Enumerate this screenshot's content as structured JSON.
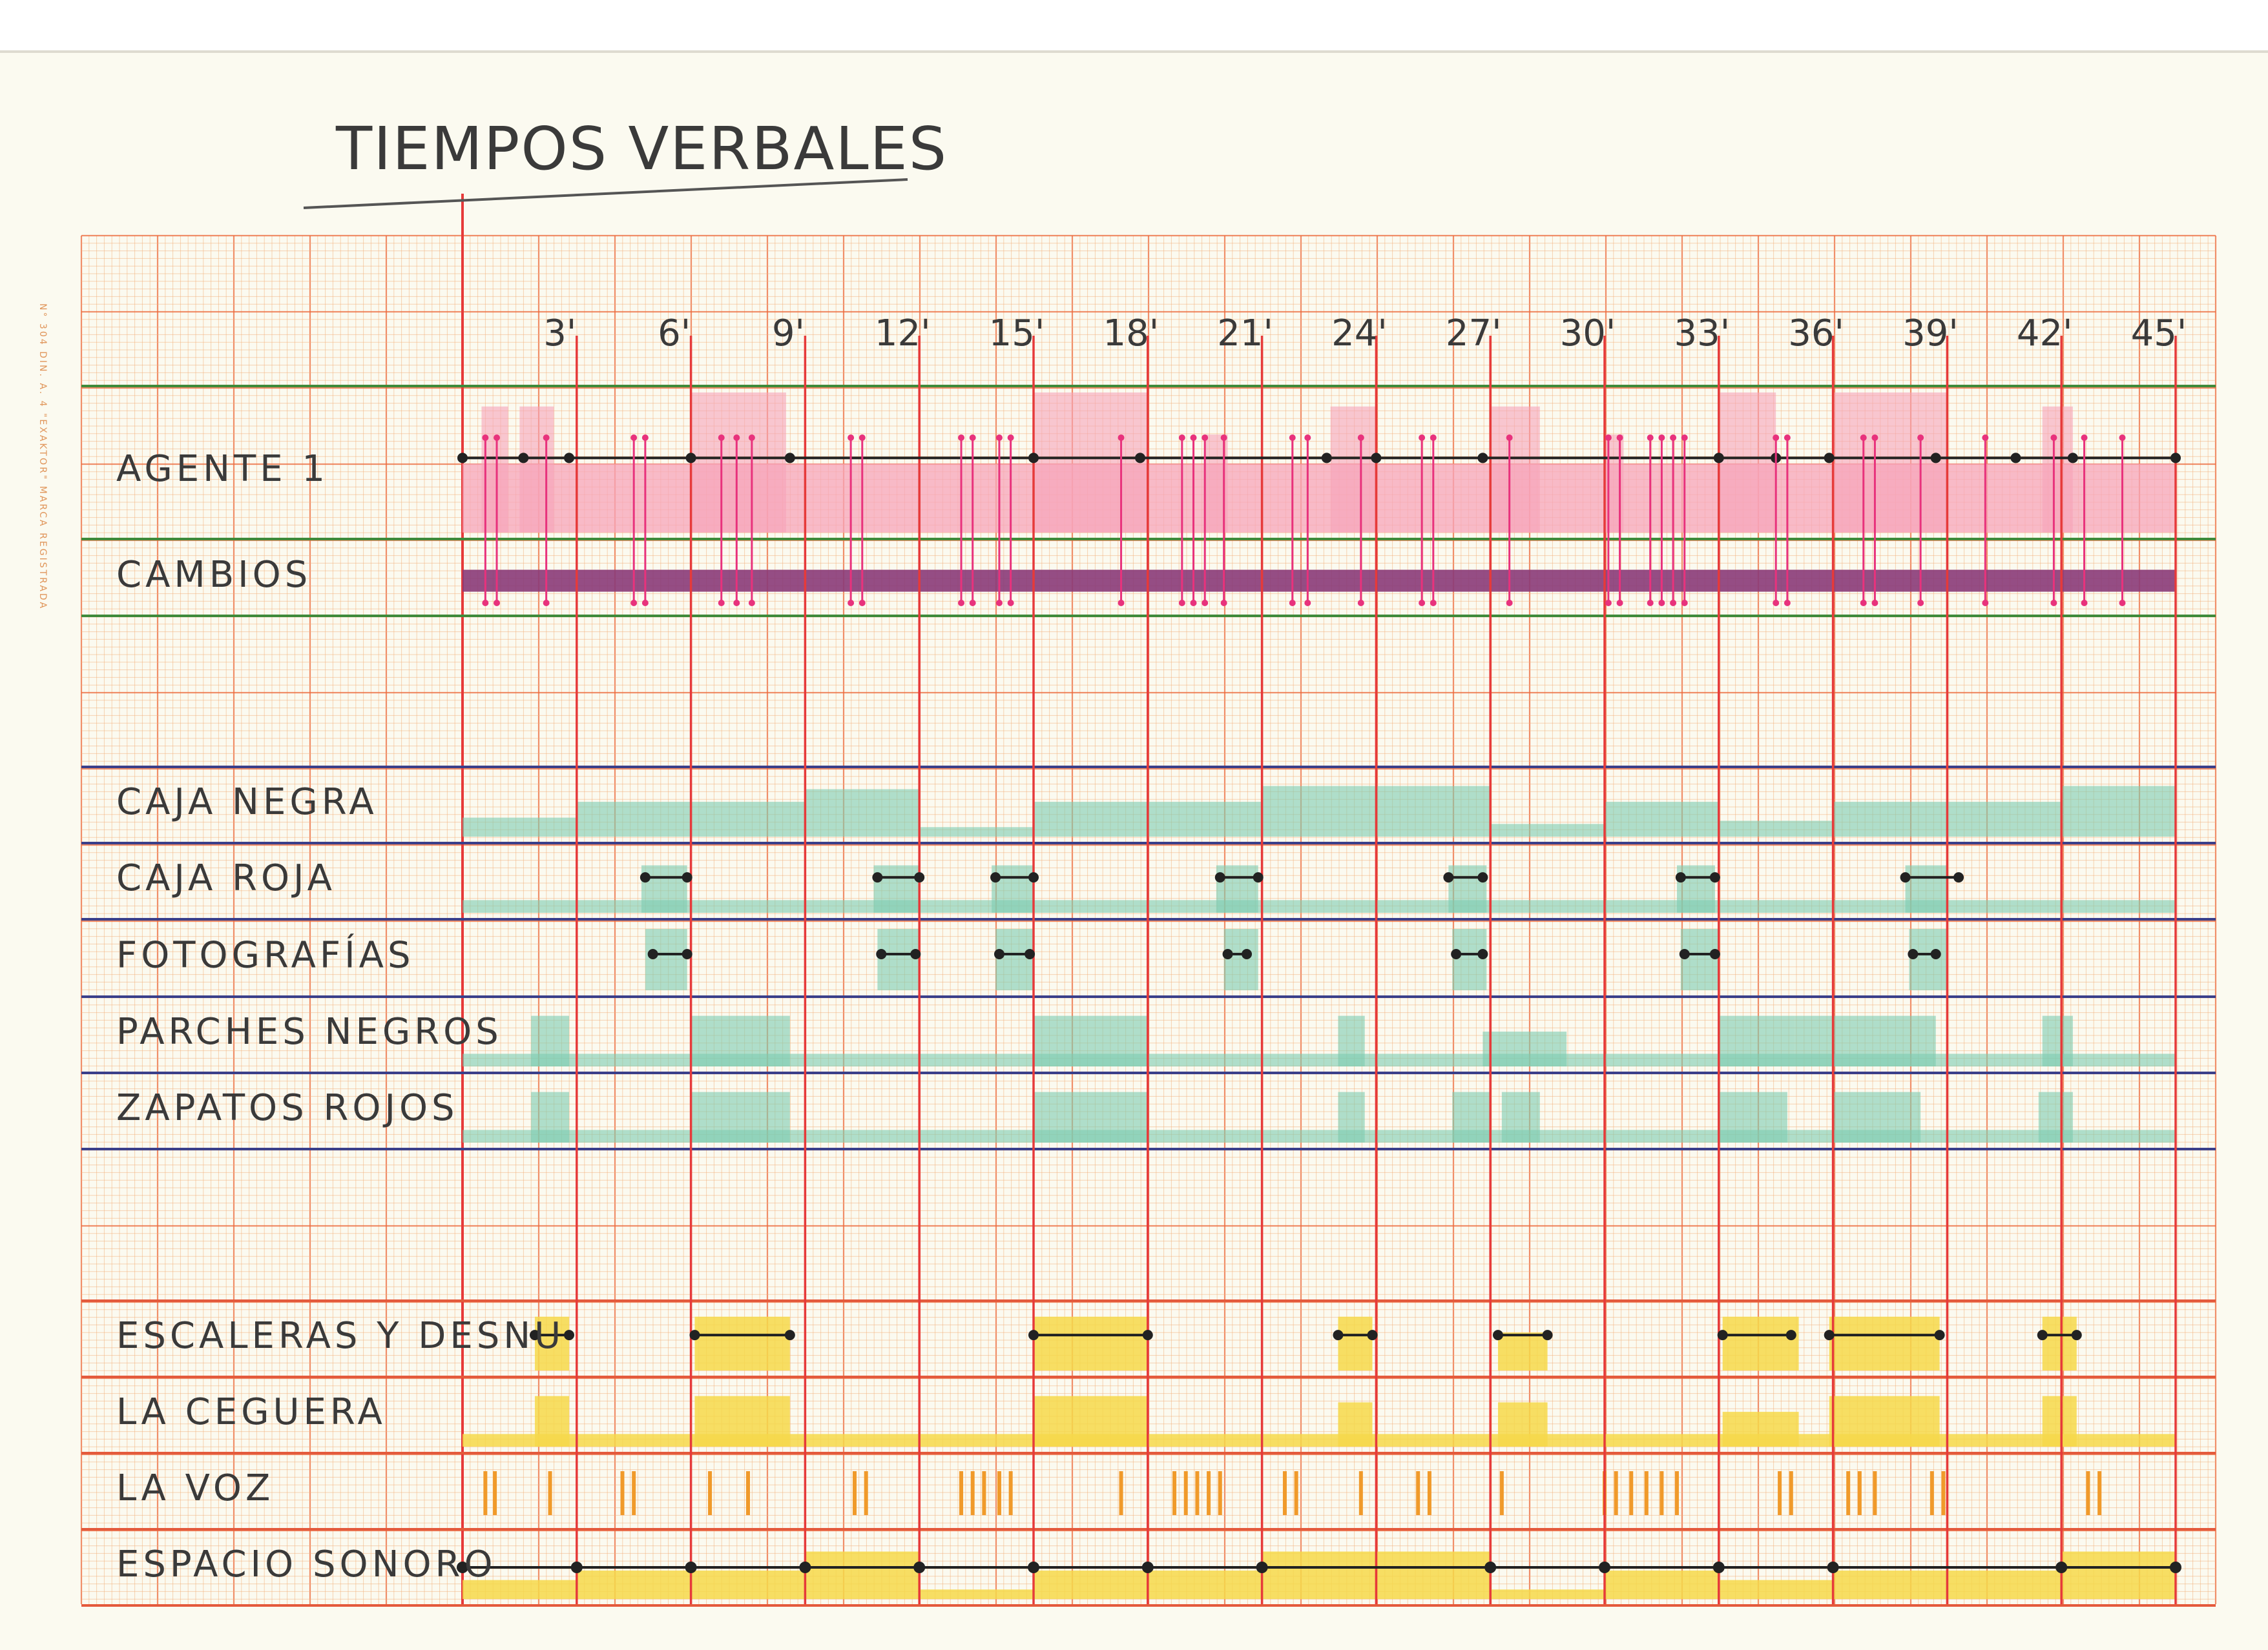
{
  "title": "TIEMPOS VERBALES",
  "paper_imprint": "N° 304 DIN. A. 4 \"EXAKTOR\" MARCA REGISTRADA",
  "colors": {
    "paper": "#fbfaf0",
    "grid_fine": "#f3b17c",
    "grid_major": "#ec6a3c",
    "minute_line": "#e63a3a",
    "band_green": "#3f8a3a",
    "band_blue": "#3a3f8a",
    "band_red": "#e45a3c",
    "pink": "#f7a4b9",
    "magenta": "#e8327c",
    "purple": "#8a3a78",
    "teal": "#7dcbb0",
    "yellow": "#f6d84a",
    "orange": "#f09a2a",
    "ink": "#222222"
  },
  "timeline": {
    "start": 0,
    "end": 45,
    "tick_labels": [
      "3'",
      "6'",
      "9'",
      "12'",
      "15'",
      "18'",
      "21'",
      "24'",
      "27'",
      "30'",
      "33'",
      "36'",
      "39'",
      "42'",
      "45'"
    ]
  },
  "rows": [
    {
      "id": "agente",
      "label": "AGENTE 1",
      "kind": "agent",
      "blocks": [
        [
          0.5,
          1.2,
          0.9
        ],
        [
          1.5,
          2.4,
          0.9
        ],
        [
          6,
          8.5,
          1.0
        ],
        [
          15,
          18,
          1.0
        ],
        [
          19.5,
          20.1,
          0.7
        ],
        [
          22.8,
          24,
          0.9
        ],
        [
          27,
          28.3,
          0.9
        ],
        [
          30,
          30.5,
          0.7
        ],
        [
          33,
          34.5,
          1.0
        ],
        [
          36,
          39,
          1.0
        ],
        [
          41.5,
          42.3,
          0.9
        ]
      ],
      "base": 0.45,
      "dots": [
        0,
        1.6,
        2.8,
        6,
        8.6,
        15,
        17.8,
        22.7,
        24,
        26.8,
        33,
        34.5,
        35.9,
        38.7,
        40.8,
        42.3,
        45
      ]
    },
    {
      "id": "cambios",
      "label": "CAMBIOS",
      "kind": "changes",
      "marks": [
        0.6,
        0.9,
        2.2,
        4.5,
        4.8,
        6.8,
        7.2,
        7.6,
        10.2,
        10.5,
        13.1,
        13.4,
        14.1,
        14.4,
        17.3,
        18.9,
        19.2,
        19.5,
        20,
        21.8,
        22.2,
        23.6,
        25.2,
        25.5,
        27.5,
        30.1,
        30.4,
        31.2,
        31.5,
        31.8,
        32.1,
        34.5,
        34.8,
        36.8,
        37.1,
        38.3,
        40,
        41.8,
        42.6,
        43.6
      ]
    },
    {
      "id": "caja_negra",
      "label": "CAJA NEGRA",
      "kind": "blocks",
      "blocks": [
        [
          0,
          3,
          0.3
        ],
        [
          3,
          9,
          0.55
        ],
        [
          9,
          12,
          0.75
        ],
        [
          12,
          15,
          0.15
        ],
        [
          15,
          21,
          0.55
        ],
        [
          21,
          27,
          0.8
        ],
        [
          27,
          30,
          0.2
        ],
        [
          30,
          33,
          0.55
        ],
        [
          33,
          36,
          0.25
        ],
        [
          36,
          39,
          0.55
        ],
        [
          39,
          42,
          0.55
        ],
        [
          42,
          45,
          0.8
        ]
      ]
    },
    {
      "id": "caja_roja",
      "label": "CAJA ROJA",
      "kind": "blocks",
      "blocks": [
        [
          0,
          45,
          0.2
        ],
        [
          4.7,
          5.9,
          0.75
        ],
        [
          10.8,
          12,
          0.75
        ],
        [
          13.9,
          15,
          0.75
        ],
        [
          19.8,
          20.9,
          0.75
        ],
        [
          25.9,
          26.9,
          0.75
        ],
        [
          31.9,
          32.9,
          0.75
        ],
        [
          37.9,
          39,
          0.75
        ]
      ],
      "segments": [
        [
          4.8,
          5.9
        ],
        [
          10.9,
          12
        ],
        [
          14,
          15
        ],
        [
          19.9,
          20.9
        ],
        [
          25.9,
          26.8
        ],
        [
          32,
          32.9
        ],
        [
          37.9,
          39.3
        ]
      ]
    },
    {
      "id": "fotografias",
      "label": "FOTOGRAFÍAS",
      "kind": "blocks",
      "blocks": [
        [
          4.8,
          5.9,
          0.95
        ],
        [
          10.9,
          12,
          0.95
        ],
        [
          14,
          15,
          0.95
        ],
        [
          20,
          20.9,
          0.95
        ],
        [
          26,
          26.9,
          0.95
        ],
        [
          32,
          33,
          0.95
        ],
        [
          38,
          39,
          0.95
        ]
      ],
      "segments": [
        [
          5,
          5.9
        ],
        [
          11,
          11.9
        ],
        [
          14.1,
          14.9
        ],
        [
          20.1,
          20.6
        ],
        [
          26.1,
          26.8
        ],
        [
          32.1,
          32.9
        ],
        [
          38.1,
          38.7
        ]
      ]
    },
    {
      "id": "parches",
      "label": "PARCHES NEGROS",
      "kind": "blocks",
      "blocks": [
        [
          0,
          45,
          0.2
        ],
        [
          1.8,
          2.8,
          0.8
        ],
        [
          6,
          8.6,
          0.8
        ],
        [
          15,
          18,
          0.8
        ],
        [
          23,
          23.7,
          0.8
        ],
        [
          26.8,
          28.3,
          0.55
        ],
        [
          28.3,
          29,
          0.55
        ],
        [
          33,
          35,
          0.8
        ],
        [
          35,
          38.7,
          0.8
        ],
        [
          41.5,
          42.3,
          0.8
        ]
      ]
    },
    {
      "id": "zapatos",
      "label": "ZAPATOS ROJOS",
      "kind": "blocks",
      "blocks": [
        [
          0,
          45,
          0.2
        ],
        [
          1.8,
          2.8,
          0.8
        ],
        [
          6,
          8.6,
          0.8
        ],
        [
          15,
          18,
          0.8
        ],
        [
          23,
          23.7,
          0.8
        ],
        [
          26,
          27,
          0.8
        ],
        [
          27.3,
          28.3,
          0.8
        ],
        [
          33,
          34.8,
          0.8
        ],
        [
          36,
          38.3,
          0.8
        ],
        [
          41.4,
          42.3,
          0.8
        ]
      ]
    },
    {
      "id": "escaleras",
      "label": "ESCALERAS Y DESNU",
      "kind": "yellow",
      "blocks": [
        [
          1.9,
          2.8,
          0.85
        ],
        [
          6.1,
          8.6,
          0.85
        ],
        [
          15,
          18,
          0.85
        ],
        [
          23,
          23.9,
          0.85
        ],
        [
          27.2,
          28.5,
          0.6
        ],
        [
          33.1,
          35.1,
          0.85
        ],
        [
          35.9,
          38.8,
          0.85
        ],
        [
          41.5,
          42.4,
          0.85
        ]
      ],
      "segments": [
        [
          1.9,
          2.8
        ],
        [
          6.1,
          8.6
        ],
        [
          15,
          18
        ],
        [
          23,
          23.9
        ],
        [
          27.2,
          28.5
        ],
        [
          33.1,
          34.9
        ],
        [
          35.9,
          38.8
        ],
        [
          41.5,
          42.4
        ]
      ]
    },
    {
      "id": "ceguera",
      "label": "LA CEGUERA",
      "kind": "yellow",
      "blocks": [
        [
          0,
          45,
          0.2
        ],
        [
          1.9,
          2.8,
          0.8
        ],
        [
          6.1,
          8.6,
          0.8
        ],
        [
          15,
          18,
          0.8
        ],
        [
          23,
          23.9,
          0.7
        ],
        [
          27.2,
          28.5,
          0.7
        ],
        [
          33.1,
          35.1,
          0.55
        ],
        [
          35.9,
          38.8,
          0.8
        ],
        [
          41.5,
          42.4,
          0.8
        ]
      ]
    },
    {
      "id": "voz",
      "label": "LA VOZ",
      "kind": "voice",
      "marks": [
        0.6,
        0.85,
        2.3,
        4.2,
        4.5,
        6.5,
        7.5,
        10.3,
        10.6,
        13.1,
        13.4,
        13.7,
        14.1,
        14.4,
        17.3,
        18.7,
        19,
        19.3,
        19.6,
        19.9,
        21.6,
        21.9,
        23.6,
        25.1,
        25.4,
        27.3,
        30,
        30.3,
        30.7,
        31.1,
        31.5,
        31.9,
        34.6,
        34.9,
        36.4,
        36.7,
        37.1,
        38.6,
        38.9,
        42.7,
        43
      ]
    },
    {
      "id": "espacio",
      "label": "ESPACIO SONORO",
      "kind": "yellow",
      "blocks": [
        [
          0,
          3,
          0.3
        ],
        [
          3,
          9,
          0.45
        ],
        [
          9,
          12,
          0.75
        ],
        [
          12,
          15,
          0.15
        ],
        [
          15,
          21,
          0.45
        ],
        [
          21,
          27,
          0.75
        ],
        [
          27,
          30,
          0.15
        ],
        [
          30,
          33,
          0.45
        ],
        [
          33,
          36,
          0.3
        ],
        [
          36,
          42,
          0.45
        ],
        [
          42,
          45,
          0.75
        ]
      ],
      "dots": [
        0,
        3,
        6,
        9,
        12,
        15,
        18,
        21,
        27,
        30,
        33,
        36,
        42,
        45
      ]
    }
  ]
}
